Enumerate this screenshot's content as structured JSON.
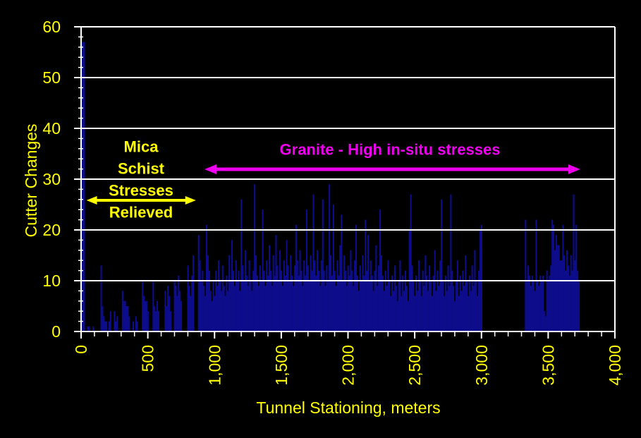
{
  "colors": {
    "background": "#000000",
    "bars": "#0d0d8c",
    "grid_and_axes": "#ffffff",
    "axis_text": "#ffff00",
    "mica_annotation": "#ffff00",
    "granite_annotation": "#ee00ee"
  },
  "annotations": {
    "mica": {
      "lines": [
        "Mica",
        "Schist",
        "Stresses",
        "Relieved"
      ],
      "color": "#ffff00",
      "arrow_span_m": [
        40,
        860
      ]
    },
    "granite": {
      "text": "Granite - High in-situ stresses",
      "color": "#ee00ee",
      "arrow_span_m": [
        925,
        3740
      ]
    }
  },
  "chart_data": {
    "type": "bar",
    "title": "",
    "xlabel": "Tunnel Stationing, meters",
    "ylabel": "Cutter Changes",
    "xlim": [
      0,
      4000
    ],
    "ylim": [
      0,
      60
    ],
    "grid": "horizontal-white-every-10",
    "legend": "none",
    "x_major_ticks": [
      {
        "m": 0,
        "label": "0"
      },
      {
        "m": 500,
        "label": "500"
      },
      {
        "m": 1000,
        "label": "1,000"
      },
      {
        "m": 1500,
        "label": "1,500"
      },
      {
        "m": 2000,
        "label": "2,000"
      },
      {
        "m": 2500,
        "label": "2,500"
      },
      {
        "m": 3000,
        "label": "3,000"
      },
      {
        "m": 3500,
        "label": "3,500"
      },
      {
        "m": 4000,
        "label": "4,000"
      }
    ],
    "x_minor_tick_step_m": 100,
    "y_major_ticks": [
      {
        "v": 0,
        "label": "0"
      },
      {
        "v": 10,
        "label": "10"
      },
      {
        "v": 20,
        "label": "20"
      },
      {
        "v": 30,
        "label": "30"
      },
      {
        "v": 40,
        "label": "40"
      },
      {
        "v": 50,
        "label": "50"
      },
      {
        "v": 60,
        "label": "60"
      }
    ],
    "y_minor_tick_step": 2,
    "points_station_m_vs_cutter_changes": [
      [
        0,
        57
      ],
      [
        40,
        1
      ],
      [
        50,
        1
      ],
      [
        80,
        1
      ],
      [
        140,
        13
      ],
      [
        150,
        5
      ],
      [
        160,
        3
      ],
      [
        170,
        2
      ],
      [
        180,
        2
      ],
      [
        200,
        2
      ],
      [
        210,
        4
      ],
      [
        240,
        4
      ],
      [
        250,
        2
      ],
      [
        260,
        3
      ],
      [
        300,
        8
      ],
      [
        310,
        6
      ],
      [
        320,
        6
      ],
      [
        330,
        5
      ],
      [
        340,
        5
      ],
      [
        350,
        3
      ],
      [
        380,
        2
      ],
      [
        400,
        3
      ],
      [
        410,
        2
      ],
      [
        450,
        10
      ],
      [
        460,
        7
      ],
      [
        470,
        6
      ],
      [
        480,
        6
      ],
      [
        490,
        4
      ],
      [
        530,
        10
      ],
      [
        540,
        5
      ],
      [
        550,
        4
      ],
      [
        560,
        6
      ],
      [
        570,
        4
      ],
      [
        620,
        8
      ],
      [
        630,
        5
      ],
      [
        640,
        9
      ],
      [
        650,
        7
      ],
      [
        660,
        4
      ],
      [
        690,
        10
      ],
      [
        700,
        9
      ],
      [
        710,
        7
      ],
      [
        720,
        11
      ],
      [
        730,
        8
      ],
      [
        740,
        6
      ],
      [
        790,
        13
      ],
      [
        800,
        9
      ],
      [
        810,
        7
      ],
      [
        820,
        11
      ],
      [
        830,
        15
      ],
      [
        870,
        19
      ],
      [
        880,
        14
      ],
      [
        890,
        10
      ],
      [
        900,
        12
      ],
      [
        910,
        9
      ],
      [
        920,
        7
      ],
      [
        930,
        21
      ],
      [
        940,
        15
      ],
      [
        950,
        12
      ],
      [
        960,
        8
      ],
      [
        970,
        6
      ],
      [
        980,
        10
      ],
      [
        990,
        7
      ],
      [
        1000,
        12
      ],
      [
        1010,
        9
      ],
      [
        1020,
        14
      ],
      [
        1030,
        10
      ],
      [
        1040,
        8
      ],
      [
        1050,
        13
      ],
      [
        1060,
        9
      ],
      [
        1070,
        7
      ],
      [
        1080,
        11
      ],
      [
        1090,
        8
      ],
      [
        1100,
        15
      ],
      [
        1110,
        10
      ],
      [
        1120,
        18
      ],
      [
        1130,
        12
      ],
      [
        1140,
        9
      ],
      [
        1150,
        14
      ],
      [
        1160,
        10
      ],
      [
        1170,
        12
      ],
      [
        1180,
        8
      ],
      [
        1190,
        26
      ],
      [
        1200,
        13
      ],
      [
        1210,
        10
      ],
      [
        1220,
        16
      ],
      [
        1230,
        11
      ],
      [
        1240,
        9
      ],
      [
        1250,
        14
      ],
      [
        1260,
        10
      ],
      [
        1270,
        8
      ],
      [
        1280,
        12
      ],
      [
        1290,
        29
      ],
      [
        1300,
        15
      ],
      [
        1310,
        11
      ],
      [
        1320,
        9
      ],
      [
        1330,
        13
      ],
      [
        1340,
        10
      ],
      [
        1350,
        24
      ],
      [
        1360,
        12
      ],
      [
        1370,
        9
      ],
      [
        1380,
        14
      ],
      [
        1390,
        11
      ],
      [
        1400,
        17
      ],
      [
        1410,
        12
      ],
      [
        1420,
        9
      ],
      [
        1430,
        15
      ],
      [
        1440,
        11
      ],
      [
        1450,
        19
      ],
      [
        1460,
        13
      ],
      [
        1470,
        10
      ],
      [
        1480,
        16
      ],
      [
        1490,
        12
      ],
      [
        1500,
        9
      ],
      [
        1510,
        14
      ],
      [
        1520,
        11
      ],
      [
        1530,
        18
      ],
      [
        1540,
        13
      ],
      [
        1550,
        10
      ],
      [
        1560,
        15
      ],
      [
        1570,
        11
      ],
      [
        1580,
        9
      ],
      [
        1590,
        13
      ],
      [
        1600,
        21
      ],
      [
        1610,
        14
      ],
      [
        1620,
        11
      ],
      [
        1630,
        16
      ],
      [
        1640,
        12
      ],
      [
        1650,
        9
      ],
      [
        1660,
        14
      ],
      [
        1670,
        11
      ],
      [
        1680,
        24
      ],
      [
        1690,
        13
      ],
      [
        1700,
        10
      ],
      [
        1710,
        15
      ],
      [
        1720,
        12
      ],
      [
        1730,
        27
      ],
      [
        1740,
        14
      ],
      [
        1750,
        11
      ],
      [
        1760,
        16
      ],
      [
        1770,
        12
      ],
      [
        1780,
        9
      ],
      [
        1790,
        14
      ],
      [
        1800,
        26
      ],
      [
        1810,
        12
      ],
      [
        1820,
        9
      ],
      [
        1830,
        13
      ],
      [
        1840,
        10
      ],
      [
        1850,
        29
      ],
      [
        1860,
        15
      ],
      [
        1870,
        11
      ],
      [
        1880,
        25
      ],
      [
        1890,
        12
      ],
      [
        1900,
        9
      ],
      [
        1910,
        14
      ],
      [
        1920,
        11
      ],
      [
        1930,
        17
      ],
      [
        1940,
        23
      ],
      [
        1950,
        10
      ],
      [
        1960,
        15
      ],
      [
        1970,
        12
      ],
      [
        1980,
        9
      ],
      [
        1990,
        13
      ],
      [
        2000,
        11
      ],
      [
        2010,
        16
      ],
      [
        2020,
        12
      ],
      [
        2030,
        9
      ],
      [
        2040,
        14
      ],
      [
        2050,
        21
      ],
      [
        2060,
        11
      ],
      [
        2070,
        8
      ],
      [
        2080,
        13
      ],
      [
        2090,
        10
      ],
      [
        2100,
        15
      ],
      [
        2110,
        11
      ],
      [
        2120,
        22
      ],
      [
        2130,
        12
      ],
      [
        2140,
        19
      ],
      [
        2150,
        10
      ],
      [
        2160,
        14
      ],
      [
        2170,
        11
      ],
      [
        2180,
        8
      ],
      [
        2190,
        12
      ],
      [
        2200,
        17
      ],
      [
        2210,
        9
      ],
      [
        2220,
        13
      ],
      [
        2230,
        24
      ],
      [
        2240,
        15
      ],
      [
        2250,
        11
      ],
      [
        2260,
        8
      ],
      [
        2270,
        12
      ],
      [
        2280,
        9
      ],
      [
        2290,
        14
      ],
      [
        2300,
        10
      ],
      [
        2310,
        7
      ],
      [
        2320,
        11
      ],
      [
        2330,
        8
      ],
      [
        2340,
        13
      ],
      [
        2350,
        9
      ],
      [
        2360,
        6
      ],
      [
        2370,
        10
      ],
      [
        2380,
        14
      ],
      [
        2390,
        7
      ],
      [
        2400,
        11
      ],
      [
        2410,
        8
      ],
      [
        2420,
        12
      ],
      [
        2430,
        9
      ],
      [
        2440,
        6
      ],
      [
        2450,
        20
      ],
      [
        2460,
        27
      ],
      [
        2470,
        13
      ],
      [
        2480,
        10
      ],
      [
        2490,
        7
      ],
      [
        2500,
        11
      ],
      [
        2510,
        8
      ],
      [
        2520,
        14
      ],
      [
        2530,
        10
      ],
      [
        2540,
        7
      ],
      [
        2550,
        12
      ],
      [
        2560,
        9
      ],
      [
        2570,
        15
      ],
      [
        2580,
        11
      ],
      [
        2590,
        8
      ],
      [
        2600,
        13
      ],
      [
        2610,
        10
      ],
      [
        2620,
        7
      ],
      [
        2630,
        11
      ],
      [
        2640,
        16
      ],
      [
        2650,
        8
      ],
      [
        2660,
        12
      ],
      [
        2670,
        9
      ],
      [
        2680,
        14
      ],
      [
        2690,
        26
      ],
      [
        2700,
        10
      ],
      [
        2710,
        7
      ],
      [
        2720,
        11
      ],
      [
        2730,
        8
      ],
      [
        2740,
        13
      ],
      [
        2750,
        9
      ],
      [
        2760,
        27
      ],
      [
        2770,
        12
      ],
      [
        2780,
        9
      ],
      [
        2790,
        6
      ],
      [
        2800,
        10
      ],
      [
        2810,
        14
      ],
      [
        2820,
        7
      ],
      [
        2830,
        11
      ],
      [
        2840,
        8
      ],
      [
        2850,
        12
      ],
      [
        2860,
        9
      ],
      [
        2870,
        15
      ],
      [
        2880,
        10
      ],
      [
        2890,
        7
      ],
      [
        2900,
        11
      ],
      [
        2910,
        8
      ],
      [
        2920,
        13
      ],
      [
        2930,
        9
      ],
      [
        2940,
        16
      ],
      [
        2950,
        10
      ],
      [
        2960,
        7
      ],
      [
        2970,
        12
      ],
      [
        2980,
        20
      ],
      [
        2990,
        21
      ],
      [
        3320,
        22
      ],
      [
        3330,
        10
      ],
      [
        3340,
        13
      ],
      [
        3350,
        11
      ],
      [
        3360,
        9
      ],
      [
        3370,
        11
      ],
      [
        3380,
        10
      ],
      [
        3390,
        8
      ],
      [
        3400,
        22
      ],
      [
        3410,
        10
      ],
      [
        3420,
        9
      ],
      [
        3430,
        11
      ],
      [
        3440,
        10
      ],
      [
        3450,
        11
      ],
      [
        3460,
        4
      ],
      [
        3470,
        3
      ],
      [
        3480,
        12
      ],
      [
        3490,
        10
      ],
      [
        3500,
        11
      ],
      [
        3510,
        13
      ],
      [
        3520,
        22
      ],
      [
        3530,
        21
      ],
      [
        3540,
        16
      ],
      [
        3550,
        19
      ],
      [
        3560,
        17
      ],
      [
        3570,
        17
      ],
      [
        3580,
        14
      ],
      [
        3590,
        14
      ],
      [
        3600,
        21
      ],
      [
        3610,
        15
      ],
      [
        3620,
        12
      ],
      [
        3630,
        16
      ],
      [
        3640,
        13
      ],
      [
        3650,
        11
      ],
      [
        3660,
        15
      ],
      [
        3670,
        12
      ],
      [
        3680,
        27
      ],
      [
        3690,
        14
      ],
      [
        3700,
        21
      ],
      [
        3710,
        12
      ],
      [
        3720,
        10
      ]
    ]
  }
}
